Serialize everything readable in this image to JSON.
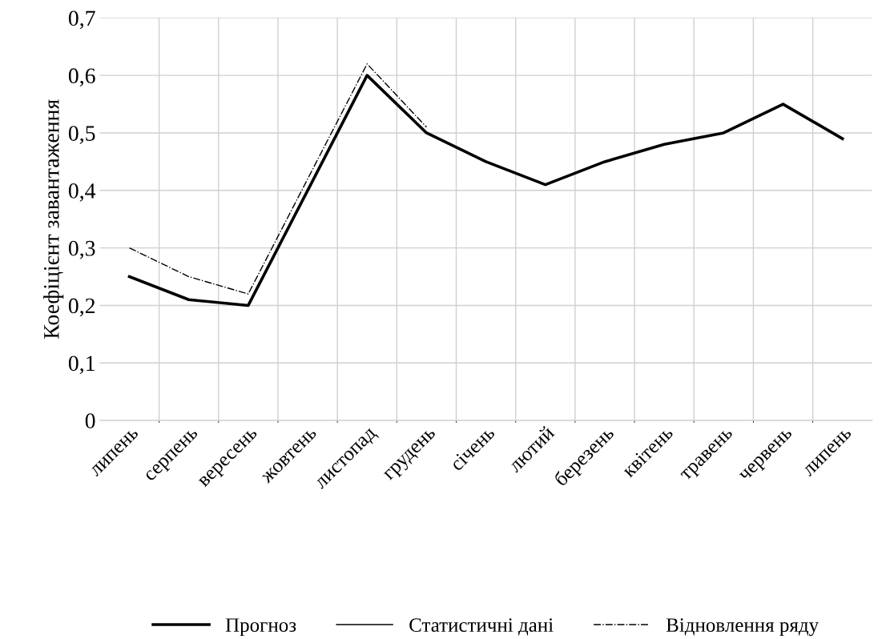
{
  "chart_data": {
    "type": "line",
    "ylabel": "Коефіцієнт завантаження",
    "categories": [
      "липень",
      "серпень",
      "вересень",
      "жовтень",
      "листопад",
      "грудень",
      "січень",
      "лютий",
      "березень",
      "квітень",
      "травень",
      "червень",
      "липень"
    ],
    "series": [
      {
        "name": "Прогноз",
        "color": "#000000",
        "line_style": "solid",
        "values": [
          0.25,
          0.21,
          0.2,
          0.4,
          0.6,
          0.5,
          0.45,
          0.41,
          0.45,
          0.48,
          0.5,
          0.55,
          0.49
        ]
      },
      {
        "name": "Статистичні дані",
        "color": "#000000",
        "line_style": "solid",
        "values": [
          null,
          null,
          null,
          null,
          null,
          null,
          null,
          null,
          null,
          null,
          null,
          null,
          null
        ]
      },
      {
        "name": "Відновлення ряду",
        "color": "#000000",
        "line_style": "dashdot",
        "values": [
          0.3,
          0.25,
          0.22,
          0.42,
          0.62,
          0.51,
          null,
          null,
          null,
          null,
          null,
          null,
          null
        ]
      }
    ],
    "ylim": [
      0,
      0.7
    ],
    "yticks": [
      0,
      {
        "value": 0.1,
        "label": "0,1"
      },
      {
        "value": 0.2,
        "label": "0,2"
      },
      {
        "value": 0.3,
        "label": "0,3"
      },
      {
        "value": 0.4,
        "label": "0,4"
      },
      {
        "value": 0.5,
        "label": "0,5"
      },
      {
        "value": 0.6,
        "label": "0,6"
      },
      {
        "value": 0.7,
        "label": "0,7"
      }
    ],
    "grid": true,
    "legend": "bottom",
    "marker": "none"
  }
}
